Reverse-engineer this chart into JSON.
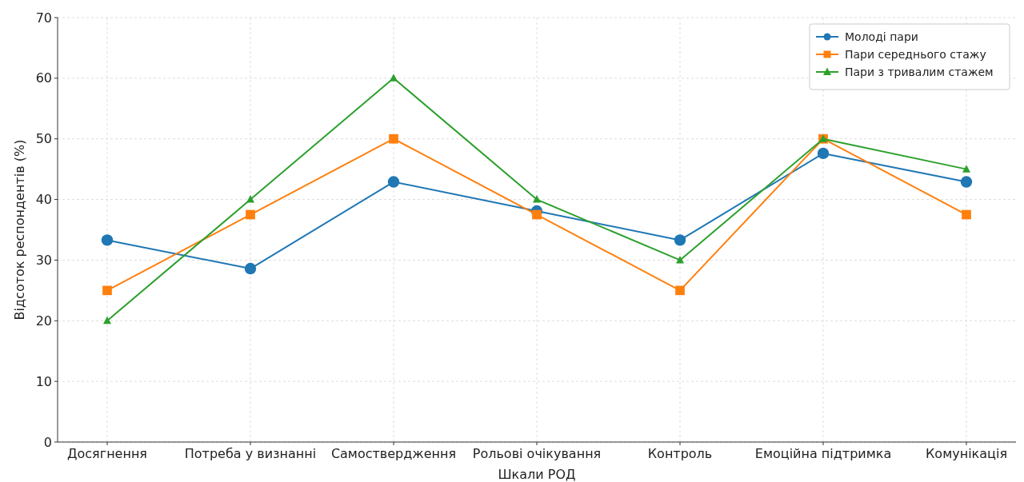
{
  "chart_data": {
    "type": "line",
    "xlabel": "Шкали РОД",
    "ylabel": "Відсоток респондентів (%)",
    "categories": [
      "Досягнення",
      "Потреба у визнанні",
      "Самоствердження",
      "Рольові очікування",
      "Контроль",
      "Емоційна підтримка",
      "Комунікація"
    ],
    "series": [
      {
        "name": "Молоді пари",
        "color": "#1f77b4",
        "marker": "circle",
        "values": [
          33.3,
          28.6,
          42.9,
          38.1,
          33.3,
          47.6,
          42.9
        ]
      },
      {
        "name": "Пари середнього стажу",
        "color": "#ff7f0e",
        "marker": "square",
        "values": [
          25,
          37.5,
          50,
          37.5,
          25,
          50,
          37.5
        ]
      },
      {
        "name": "Пари з тривалим стажем",
        "color": "#2ca02c",
        "marker": "triangle",
        "values": [
          20,
          40,
          60,
          40,
          30,
          50,
          45
        ]
      }
    ],
    "ylim": [
      0,
      70
    ],
    "yticks": [
      0,
      10,
      20,
      30,
      40,
      50,
      60,
      70
    ],
    "grid": true,
    "legend": "top right",
    "line_style": "solid"
  }
}
